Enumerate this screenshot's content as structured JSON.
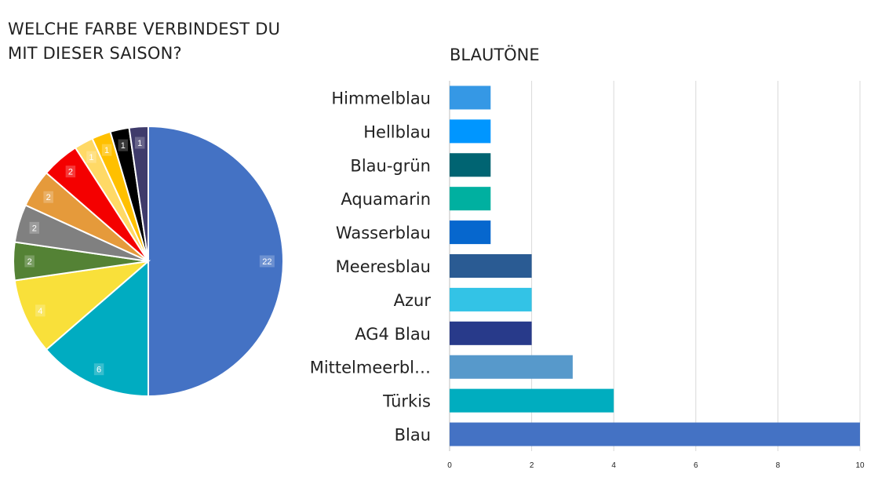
{
  "pie_title": "WELCHE FARBE VERBINDEST DU MIT DIESER SAISON?",
  "bar_title": "BLAUTÖNE",
  "chart_data": [
    {
      "type": "pie",
      "title": "WELCHE FARBE VERBINDEST DU MIT DIESER SAISON?",
      "slices": [
        {
          "value": 22,
          "color": "#4472C4"
        },
        {
          "value": 6,
          "color": "#00ACC1"
        },
        {
          "value": 4,
          "color": "#F9E03A"
        },
        {
          "value": 2,
          "color": "#548235"
        },
        {
          "value": 2,
          "color": "#808080"
        },
        {
          "value": 2,
          "color": "#E59A3B"
        },
        {
          "value": 2,
          "color": "#F40000"
        },
        {
          "value": 1,
          "color": "#FFD966"
        },
        {
          "value": 1,
          "color": "#FFC000"
        },
        {
          "value": 1,
          "color": "#000000"
        },
        {
          "value": 1,
          "color": "#3F3B6B"
        }
      ]
    },
    {
      "type": "bar",
      "orientation": "horizontal",
      "title": "BLAUTÖNE",
      "categories": [
        "Himmelblau",
        "Hellblau",
        "Blau-grün",
        "Aquamarin",
        "Wasserblau",
        "Meeresblau",
        "Azur",
        "AG4 Blau",
        "Mittelmeerbl…",
        "Türkis",
        "Blau"
      ],
      "values": [
        1,
        1,
        1,
        1,
        1,
        2,
        2,
        2,
        3,
        4,
        10
      ],
      "colors": [
        "#3598E5",
        "#0096FF",
        "#006472",
        "#00B0A0",
        "#0667CE",
        "#2A5B93",
        "#33C3E6",
        "#283A8A",
        "#5799CB",
        "#00ADBF",
        "#4472C4"
      ],
      "xlim": [
        0,
        10
      ],
      "xticks": [
        0,
        2,
        4,
        6,
        8,
        10
      ],
      "grid": true
    }
  ]
}
